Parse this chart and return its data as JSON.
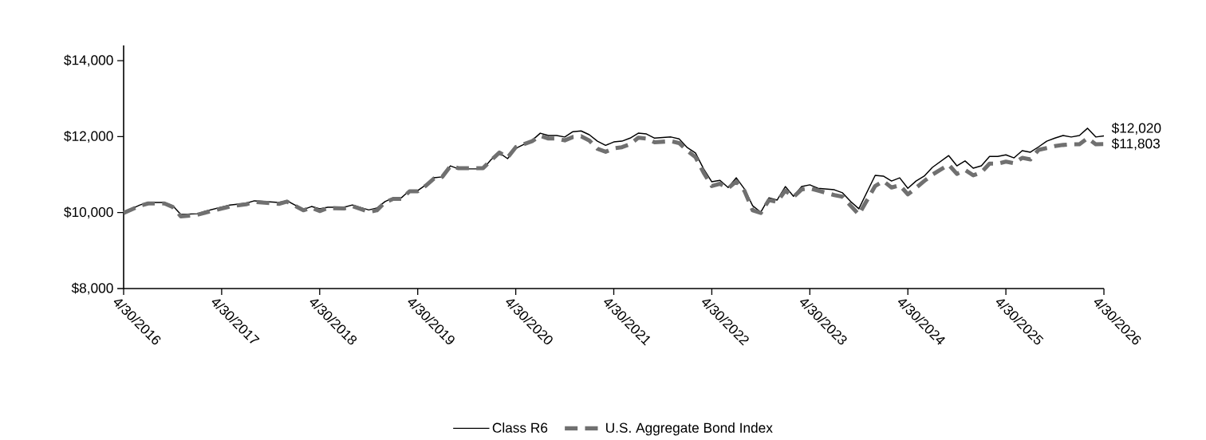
{
  "chart_data": {
    "type": "line",
    "legend": "bottom",
    "grid": false,
    "marker": "none",
    "x": [
      "2016-04",
      "2016-06",
      "2016-07",
      "2016-09",
      "2016-10",
      "2016-11",
      "2017-01",
      "2017-02",
      "2017-05",
      "2017-07",
      "2017-08",
      "2017-11",
      "2017-12",
      "2018-02",
      "2018-03",
      "2018-04",
      "2018-05",
      "2018-07",
      "2018-08",
      "2018-10",
      "2018-11",
      "2018-12",
      "2019-01",
      "2019-02",
      "2019-03",
      "2019-04",
      "2019-05",
      "2019-06",
      "2019-07",
      "2019-08",
      "2019-09",
      "2019-12",
      "2020-01",
      "2020-02",
      "2020-03",
      "2020-04",
      "2020-06",
      "2020-07",
      "2020-08",
      "2020-09",
      "2020-10",
      "2020-11",
      "2020-12",
      "2021-01",
      "2021-02",
      "2021-03",
      "2021-04",
      "2021-05",
      "2021-06",
      "2021-07",
      "2021-08",
      "2021-09",
      "2021-11",
      "2021-12",
      "2022-01",
      "2022-02",
      "2022-03",
      "2022-04",
      "2022-05",
      "2022-06",
      "2022-07",
      "2022-08",
      "2022-09",
      "2022-10",
      "2022-11",
      "2022-12",
      "2023-01",
      "2023-02",
      "2023-03",
      "2023-04",
      "2023-05",
      "2023-07",
      "2023-08",
      "2023-09",
      "2023-10",
      "2023-12",
      "2024-01",
      "2024-02",
      "2024-03",
      "2024-04",
      "2024-05",
      "2024-06",
      "2024-07",
      "2024-09",
      "2024-10",
      "2024-11",
      "2024-12",
      "2025-01",
      "2025-02",
      "2025-03",
      "2025-04",
      "2025-05",
      "2025-06",
      "2025-07",
      "2025-08",
      "2025-09",
      "2025-10",
      "2025-11",
      "2025-12",
      "2026-01",
      "2026-02",
      "2026-03",
      "2026-04"
    ],
    "series": [
      {
        "name": "Class R6",
        "color": "#000000",
        "line_style": "solid",
        "values": [
          10000,
          10200,
          10265,
          10265,
          10180,
          9950,
          9970,
          10035,
          10200,
          10245,
          10310,
          10265,
          10310,
          10080,
          10160,
          10100,
          10140,
          10140,
          10200,
          10070,
          10120,
          10290,
          10390,
          10390,
          10580,
          10580,
          10730,
          10915,
          10940,
          11230,
          11150,
          11150,
          11400,
          11570,
          11420,
          11690,
          11900,
          12090,
          12030,
          12030,
          11990,
          12130,
          12150,
          12050,
          11880,
          11770,
          11860,
          11880,
          11960,
          12090,
          12070,
          11960,
          11990,
          11940,
          11710,
          11570,
          11150,
          10810,
          10850,
          10660,
          10915,
          10620,
          10180,
          10010,
          10390,
          10330,
          10685,
          10430,
          10685,
          10730,
          10640,
          10600,
          10520,
          10290,
          10100,
          10980,
          10960,
          10830,
          10915,
          10640,
          10830,
          10960,
          11190,
          11500,
          11230,
          11360,
          11170,
          11230,
          11480,
          11480,
          11520,
          11440,
          11630,
          11590,
          11730,
          11880,
          11960,
          12030,
          11990,
          12030,
          12220,
          11990,
          12020
        ]
      },
      {
        "name": "U.S. Aggregate Bond Index",
        "color": "#707070",
        "line_style": "dashed",
        "values": [
          9990,
          10180,
          10240,
          10240,
          10150,
          9900,
          9940,
          10000,
          10160,
          10220,
          10280,
          10230,
          10290,
          10060,
          10130,
          10040,
          10120,
          10110,
          10170,
          10020,
          10060,
          10270,
          10360,
          10360,
          10560,
          10560,
          10710,
          10900,
          10940,
          11220,
          11170,
          11170,
          11380,
          11580,
          11450,
          11720,
          11880,
          12020,
          11950,
          11950,
          11900,
          11990,
          12010,
          11900,
          11680,
          11600,
          11690,
          11720,
          11800,
          11970,
          11950,
          11850,
          11880,
          11830,
          11630,
          11460,
          11050,
          10700,
          10760,
          10640,
          10820,
          10570,
          10060,
          9990,
          10330,
          10280,
          10580,
          10410,
          10610,
          10640,
          10580,
          10460,
          10420,
          10180,
          9950,
          10700,
          10830,
          10660,
          10720,
          10480,
          10650,
          10830,
          11000,
          11260,
          11020,
          11120,
          10980,
          11060,
          11290,
          11290,
          11340,
          11300,
          11440,
          11400,
          11650,
          11700,
          11750,
          11780,
          11800,
          11800,
          11960,
          11800,
          11803
        ]
      }
    ],
    "xlim": [
      "2016-04",
      "2026-04"
    ],
    "xticks": [
      {
        "value": "2016-04",
        "label": "4/30/2016"
      },
      {
        "value": "2017-04",
        "label": "4/30/2017"
      },
      {
        "value": "2018-04",
        "label": "4/30/2018"
      },
      {
        "value": "2019-04",
        "label": "4/30/2019"
      },
      {
        "value": "2020-04",
        "label": "4/30/2020"
      },
      {
        "value": "2021-04",
        "label": "4/30/2021"
      },
      {
        "value": "2022-04",
        "label": "4/30/2022"
      },
      {
        "value": "2023-04",
        "label": "4/30/2023"
      },
      {
        "value": "2024-04",
        "label": "4/30/2024"
      },
      {
        "value": "2025-04",
        "label": "4/30/2025"
      },
      {
        "value": "2026-04",
        "label": "4/30/2026"
      }
    ],
    "ylim": [
      8000,
      14400
    ],
    "yticks": [
      {
        "value": 8000,
        "label": "$8,000"
      },
      {
        "value": 10000,
        "label": "$10,000"
      },
      {
        "value": 12000,
        "label": "$12,000"
      },
      {
        "value": 14000,
        "label": "$14,000"
      }
    ],
    "annotations": [
      {
        "text": "$12,020",
        "x": "2026-04",
        "y": 12020
      },
      {
        "text": "$11,803",
        "x": "2026-04",
        "y": 11803
      }
    ]
  }
}
